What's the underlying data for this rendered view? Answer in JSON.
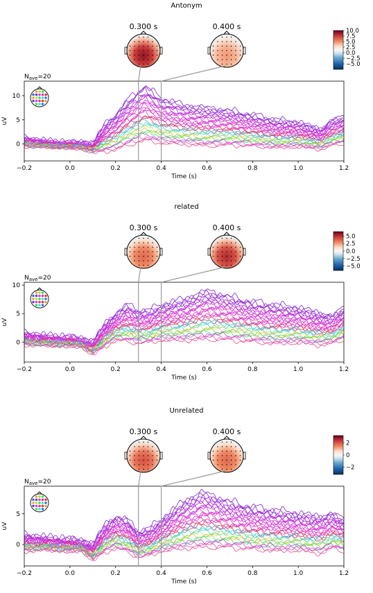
{
  "chart_data": [
    {
      "type": "line",
      "title": "Antonym",
      "xlabel": "Time (s)",
      "ylabel": "uV",
      "nave_label": "N",
      "nave_sub": "ave",
      "nave_value": "=20",
      "xlim": [
        -0.2,
        1.2
      ],
      "ylim": [
        -3.5,
        13.0
      ],
      "xticks": [
        -0.2,
        0.0,
        0.2,
        0.4,
        0.6,
        0.8,
        1.0,
        1.2
      ],
      "xtick_labels": [
        "−0.2",
        "0.0",
        "0.2",
        "0.4",
        "0.6",
        "0.8",
        "1.0",
        "1.2"
      ],
      "yticks": [
        0,
        5,
        10
      ],
      "ytick_labels": [
        "0",
        "5",
        "10"
      ],
      "topo_times": [
        0.3,
        0.4
      ],
      "topo_labels": [
        "0.300 s",
        "0.400 s"
      ],
      "colorbar": {
        "range": [
          -7.5,
          10.0
        ],
        "ticks": [
          10.0,
          7.5,
          5.0,
          2.5,
          0.0,
          -2.5,
          -5.0
        ],
        "labels": [
          "10.0",
          "7.5",
          "5.0",
          "2.5",
          "0.0",
          "−2.5",
          "−5.0"
        ]
      },
      "channel_count": 28,
      "envelope": {
        "x": [
          -0.2,
          -0.1,
          0.0,
          0.05,
          0.1,
          0.15,
          0.2,
          0.25,
          0.3,
          0.33,
          0.4,
          0.5,
          0.6,
          0.7,
          0.8,
          0.9,
          1.0,
          1.1,
          1.15,
          1.2
        ],
        "max": [
          1.2,
          0.5,
          0.2,
          0.3,
          0.0,
          4.0,
          6.0,
          9.0,
          11.0,
          12.0,
          9.5,
          8.0,
          7.5,
          7.0,
          6.0,
          5.0,
          4.5,
          3.0,
          5.0,
          5.5
        ],
        "min": [
          -0.8,
          -0.9,
          -1.0,
          -1.2,
          -2.0,
          -2.5,
          -2.5,
          -2.0,
          -1.5,
          -1.3,
          -1.5,
          -1.5,
          -1.8,
          -1.5,
          -1.6,
          -1.8,
          -1.5,
          -1.8,
          -1.2,
          -0.8
        ]
      }
    },
    {
      "type": "line",
      "title": "related",
      "xlabel": "Time (s)",
      "ylabel": "uV",
      "nave_label": "N",
      "nave_sub": "ave",
      "nave_value": "=20",
      "xlim": [
        -0.2,
        1.2
      ],
      "ylim": [
        -3.5,
        10.5
      ],
      "xticks": [
        -0.2,
        0.0,
        0.2,
        0.4,
        0.6,
        0.8,
        1.0,
        1.2
      ],
      "xtick_labels": [
        "−0.2",
        "0.0",
        "0.2",
        "0.4",
        "0.6",
        "0.8",
        "1.0",
        "1.2"
      ],
      "yticks": [
        0,
        5,
        10
      ],
      "ytick_labels": [
        "0",
        "5",
        "10"
      ],
      "topo_times": [
        0.3,
        0.4
      ],
      "topo_labels": [
        "0.300 s",
        "0.400 s"
      ],
      "colorbar": {
        "range": [
          -6.5,
          6.5
        ],
        "ticks": [
          5.0,
          2.5,
          0.0,
          -2.5,
          -5.0
        ],
        "labels": [
          "5.0",
          "2.5",
          "0.0",
          "−2.5",
          "−5.0"
        ]
      },
      "channel_count": 28,
      "envelope": {
        "x": [
          -0.2,
          -0.1,
          0.0,
          0.05,
          0.1,
          0.15,
          0.2,
          0.25,
          0.3,
          0.35,
          0.4,
          0.5,
          0.6,
          0.7,
          0.8,
          0.9,
          1.0,
          1.1,
          1.15,
          1.2
        ],
        "max": [
          1.5,
          1.0,
          0.8,
          0.5,
          0.0,
          3.0,
          5.0,
          6.5,
          5.5,
          5.5,
          6.5,
          7.5,
          9.0,
          8.0,
          7.0,
          6.5,
          6.0,
          5.0,
          4.5,
          6.0
        ],
        "min": [
          -0.8,
          -0.9,
          -1.0,
          -1.0,
          -2.5,
          -1.5,
          -0.5,
          -1.0,
          -1.2,
          -1.0,
          -0.8,
          -1.0,
          -1.0,
          -1.0,
          -1.2,
          -1.5,
          -1.2,
          -1.5,
          -1.0,
          -0.5
        ]
      }
    },
    {
      "type": "line",
      "title": "Unrelated",
      "xlabel": "Time (s)",
      "ylabel": "uV",
      "nave_label": "N",
      "nave_sub": "ave",
      "nave_value": "=20",
      "xlim": [
        -0.2,
        1.2
      ],
      "ylim": [
        -3.5,
        9.5
      ],
      "xticks": [
        -0.2,
        0.0,
        0.2,
        0.4,
        0.6,
        0.8,
        1.0,
        1.2
      ],
      "xtick_labels": [
        "−0.2",
        "0.0",
        "0.2",
        "0.4",
        "0.6",
        "0.8",
        "1.0",
        "1.2"
      ],
      "yticks": [
        0,
        5
      ],
      "ytick_labels": [
        "0",
        "5"
      ],
      "topo_times": [
        0.3,
        0.4
      ],
      "topo_labels": [
        "0.300 s",
        "0.400 s"
      ],
      "colorbar": {
        "range": [
          -3.2,
          3.2
        ],
        "ticks": [
          2,
          0,
          -2
        ],
        "labels": [
          "2",
          "0",
          "−2"
        ]
      },
      "channel_count": 28,
      "envelope": {
        "x": [
          -0.2,
          -0.1,
          0.0,
          0.05,
          0.1,
          0.15,
          0.2,
          0.25,
          0.3,
          0.35,
          0.4,
          0.5,
          0.58,
          0.7,
          0.8,
          0.9,
          1.0,
          1.1,
          1.15,
          1.2
        ],
        "max": [
          1.5,
          1.0,
          0.8,
          0.5,
          0.0,
          3.0,
          4.5,
          4.0,
          2.0,
          2.5,
          4.0,
          7.0,
          8.5,
          7.0,
          6.0,
          5.5,
          5.0,
          4.5,
          5.0,
          4.0
        ],
        "min": [
          -1.5,
          -1.2,
          -1.5,
          -1.2,
          -3.0,
          -2.0,
          -1.5,
          -2.0,
          -2.8,
          -2.5,
          -2.0,
          -2.0,
          -2.0,
          -1.8,
          -2.0,
          -2.2,
          -2.0,
          -2.5,
          -1.5,
          -2.0
        ]
      }
    }
  ]
}
